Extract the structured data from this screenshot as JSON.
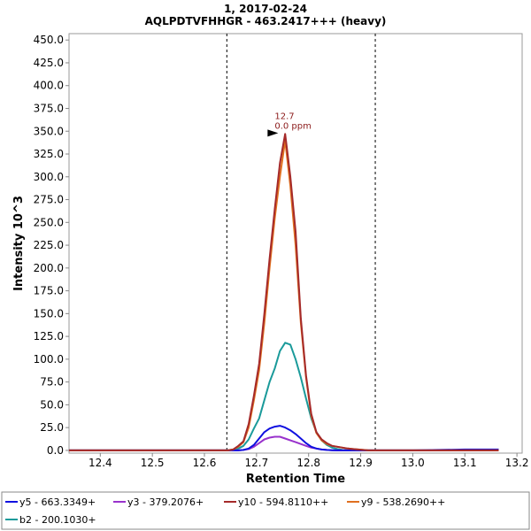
{
  "chart_data": {
    "type": "line",
    "title": "1, 2017-02-24",
    "subtitle": "AQLPDTVFHHGR - 463.2417+++ (heavy)",
    "xlabel": "Retention Time",
    "ylabel": "Intensity 10^3",
    "xlim": [
      12.34,
      13.21
    ],
    "ylim": [
      -3,
      457
    ],
    "x_ticks": [
      "12.4",
      "12.5",
      "12.6",
      "12.7",
      "12.8",
      "12.9",
      "13.0",
      "13.1",
      "13.2"
    ],
    "x_tick_values": [
      12.4,
      12.5,
      12.6,
      12.7,
      12.8,
      12.9,
      13.0,
      13.1,
      13.2
    ],
    "y_ticks": [
      "0.0",
      "25.0",
      "50.0",
      "75.0",
      "100.0",
      "125.0",
      "150.0",
      "175.0",
      "200.0",
      "225.0",
      "250.0",
      "275.0",
      "300.0",
      "325.0",
      "350.0",
      "375.0",
      "400.0",
      "425.0",
      "450.0"
    ],
    "y_tick_values": [
      0,
      25,
      50,
      75,
      100,
      125,
      150,
      175,
      200,
      225,
      250,
      275,
      300,
      325,
      350,
      375,
      400,
      425,
      450
    ],
    "boundaries": [
      12.643,
      12.928
    ],
    "grid": false,
    "legend_position": "bottom",
    "annotation": {
      "x": 12.745,
      "y": 347,
      "text_lines": [
        "12.7",
        "0.0 ppm"
      ]
    },
    "x": [
      12.34,
      12.62,
      12.645,
      12.655,
      12.665,
      12.675,
      12.685,
      12.695,
      12.705,
      12.715,
      12.725,
      12.735,
      12.745,
      12.755,
      12.765,
      12.775,
      12.785,
      12.795,
      12.805,
      12.815,
      12.825,
      12.835,
      12.845,
      12.855,
      12.865,
      12.875,
      12.885,
      12.895,
      12.905,
      12.915,
      12.93,
      13.0,
      13.1,
      13.165
    ],
    "series": [
      {
        "name": "y5 - 663.3349+",
        "color": "#1010e0",
        "values": [
          0,
          0,
          0,
          0,
          0,
          0.5,
          2,
          6,
          13,
          20,
          24,
          26,
          27,
          25,
          22,
          18,
          13,
          8,
          4,
          2,
          1,
          0.5,
          0.2,
          0,
          0,
          0,
          0,
          0,
          0,
          0,
          0,
          0,
          1,
          1
        ]
      },
      {
        "name": "y3 - 379.2076+",
        "color": "#9932cc",
        "values": [
          0,
          0,
          0,
          0,
          0,
          0.5,
          1.5,
          4,
          8,
          12,
          14,
          15,
          15,
          13,
          11,
          9,
          7,
          5,
          3,
          2,
          1,
          0.5,
          0.2,
          0,
          0,
          0,
          0,
          0,
          0,
          0,
          0,
          0,
          0,
          0
        ]
      },
      {
        "name": "y10 - 594.8110++",
        "color": "#a52a2a",
        "values": [
          0,
          0,
          0,
          1,
          5,
          10,
          29,
          60,
          95,
          150,
          210,
          265,
          315,
          347,
          300,
          240,
          145,
          82,
          40,
          20,
          12,
          8,
          5,
          4,
          3,
          2,
          1.5,
          1,
          0.5,
          0,
          0,
          0,
          0,
          0
        ]
      },
      {
        "name": "y9 - 538.2690++",
        "color": "#e07020",
        "values": [
          0,
          0,
          0,
          1,
          4,
          9,
          25,
          55,
          88,
          140,
          200,
          255,
          300,
          340,
          290,
          225,
          140,
          80,
          38,
          19,
          11,
          7,
          5,
          4,
          3,
          2,
          1.5,
          1,
          0.5,
          0,
          0,
          0,
          0,
          0
        ]
      },
      {
        "name": "b2 - 200.1030+",
        "color": "#1a9a9a",
        "values": [
          0,
          0,
          0,
          0.5,
          2,
          5,
          12,
          24,
          35,
          55,
          75,
          90,
          109,
          118,
          116,
          100,
          80,
          57,
          35,
          20,
          11,
          6,
          3,
          1.5,
          0.5,
          0,
          0,
          0,
          0,
          0,
          0,
          0,
          0,
          0
        ]
      }
    ]
  }
}
